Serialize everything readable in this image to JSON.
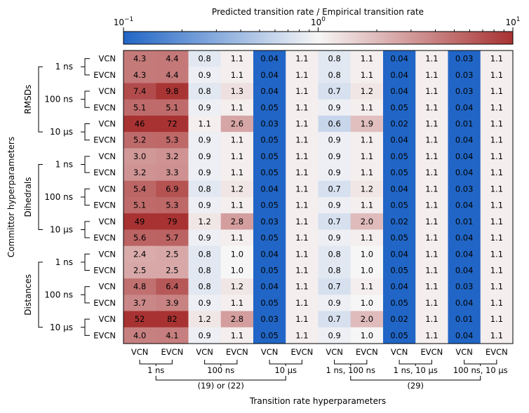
{
  "chart_data": {
    "type": "heatmap",
    "colorbar": {
      "label": "Predicted transition rate / Empirical transition rate",
      "scale": "log",
      "range": [
        0.1,
        10
      ],
      "ticks": [
        {
          "base": "10",
          "exp": "−1"
        },
        {
          "base": "10",
          "exp": "0"
        },
        {
          "base": "10",
          "exp": "1"
        }
      ],
      "cmap_low": "#2166c6",
      "cmap_mid": "#f7f6f6",
      "cmap_high": "#a83232"
    },
    "ylabel": "Committor hyperparameters",
    "xlabel": "Transition rate hyperparameters",
    "row_groups": [
      {
        "name": "RMSDs",
        "subgroups": [
          "1 ns",
          "100 ns",
          "10 μs"
        ]
      },
      {
        "name": "Dihedrals",
        "subgroups": [
          "1 ns",
          "100 ns",
          "10 μs"
        ]
      },
      {
        "name": "Distances",
        "subgroups": [
          "1 ns",
          "100 ns",
          "10 μs"
        ]
      }
    ],
    "row_labels": [
      "VCN",
      "EVCN",
      "VCN",
      "EVCN",
      "VCN",
      "EVCN",
      "VCN",
      "EVCN",
      "VCN",
      "EVCN",
      "VCN",
      "EVCN",
      "VCN",
      "EVCN",
      "VCN",
      "EVCN",
      "VCN",
      "EVCN"
    ],
    "col_labels": [
      "VCN",
      "EVCN",
      "VCN",
      "EVCN",
      "VCN",
      "EVCN",
      "VCN",
      "EVCN",
      "VCN",
      "EVCN",
      "VCN",
      "EVCN"
    ],
    "col_groups": [
      "1 ns",
      "100 ns",
      "10 μs",
      "1 ns, 100 ns",
      "1 ns, 10 μs",
      "100 ns, 10 μs"
    ],
    "col_supergroups": [
      "(19) or (22)",
      "(29)"
    ],
    "values": [
      [
        "4.3",
        "4.4",
        "0.8",
        "1.1",
        "0.04",
        "1.1",
        "0.8",
        "1.1",
        "0.04",
        "1.1",
        "0.03",
        "1.1"
      ],
      [
        "4.3",
        "4.4",
        "0.9",
        "1.1",
        "0.04",
        "1.1",
        "0.8",
        "1.1",
        "0.04",
        "1.1",
        "0.03",
        "1.1"
      ],
      [
        "7.4",
        "9.8",
        "0.8",
        "1.3",
        "0.04",
        "1.1",
        "0.7",
        "1.2",
        "0.04",
        "1.1",
        "0.03",
        "1.1"
      ],
      [
        "5.1",
        "5.1",
        "0.9",
        "1.1",
        "0.05",
        "1.1",
        "0.9",
        "1.1",
        "0.05",
        "1.1",
        "0.04",
        "1.1"
      ],
      [
        "46",
        "72",
        "1.1",
        "2.6",
        "0.03",
        "1.1",
        "0.6",
        "1.9",
        "0.02",
        "1.1",
        "0.01",
        "1.1"
      ],
      [
        "5.2",
        "5.3",
        "0.9",
        "1.1",
        "0.05",
        "1.1",
        "0.9",
        "1.1",
        "0.04",
        "1.1",
        "0.04",
        "1.1"
      ],
      [
        "3.0",
        "3.2",
        "0.9",
        "1.1",
        "0.05",
        "1.1",
        "0.9",
        "1.1",
        "0.05",
        "1.1",
        "0.04",
        "1.1"
      ],
      [
        "3.2",
        "3.3",
        "0.9",
        "1.1",
        "0.05",
        "1.1",
        "0.9",
        "1.1",
        "0.05",
        "1.1",
        "0.04",
        "1.1"
      ],
      [
        "5.4",
        "6.9",
        "0.8",
        "1.2",
        "0.04",
        "1.1",
        "0.7",
        "1.2",
        "0.04",
        "1.1",
        "0.03",
        "1.1"
      ],
      [
        "5.1",
        "5.3",
        "0.9",
        "1.1",
        "0.05",
        "1.1",
        "0.9",
        "1.1",
        "0.05",
        "1.1",
        "0.04",
        "1.1"
      ],
      [
        "49",
        "79",
        "1.2",
        "2.8",
        "0.03",
        "1.1",
        "0.7",
        "2.0",
        "0.02",
        "1.1",
        "0.01",
        "1.1"
      ],
      [
        "5.6",
        "5.7",
        "0.9",
        "1.1",
        "0.05",
        "1.1",
        "0.9",
        "1.1",
        "0.05",
        "1.1",
        "0.04",
        "1.1"
      ],
      [
        "2.4",
        "2.5",
        "0.8",
        "1.0",
        "0.04",
        "1.1",
        "0.8",
        "1.0",
        "0.04",
        "1.1",
        "0.04",
        "1.1"
      ],
      [
        "2.5",
        "2.5",
        "0.8",
        "1.0",
        "0.05",
        "1.1",
        "0.8",
        "1.0",
        "0.05",
        "1.1",
        "0.04",
        "1.1"
      ],
      [
        "4.8",
        "6.4",
        "0.8",
        "1.2",
        "0.04",
        "1.1",
        "0.7",
        "1.1",
        "0.04",
        "1.1",
        "0.03",
        "1.1"
      ],
      [
        "3.7",
        "3.9",
        "0.9",
        "1.1",
        "0.05",
        "1.1",
        "0.9",
        "1.0",
        "0.05",
        "1.1",
        "0.04",
        "1.1"
      ],
      [
        "52",
        "82",
        "1.2",
        "2.8",
        "0.03",
        "1.1",
        "0.7",
        "2.0",
        "0.02",
        "1.1",
        "0.01",
        "1.1"
      ],
      [
        "4.0",
        "4.1",
        "0.9",
        "1.1",
        "0.05",
        "1.1",
        "0.9",
        "1.0",
        "0.05",
        "1.1",
        "0.04",
        "1.1"
      ]
    ]
  }
}
